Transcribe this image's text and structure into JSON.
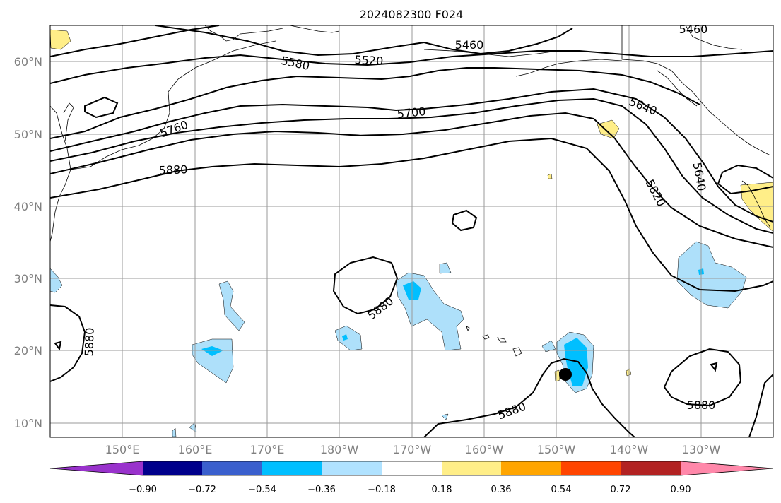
{
  "title": "2024082300 F024",
  "map": {
    "lat_labels": [
      "60°N",
      "50°N",
      "40°N",
      "30°N",
      "20°N",
      "10°N"
    ],
    "lon_labels": [
      "150°E",
      "160°E",
      "170°E",
      "180°W",
      "170°W",
      "160°W",
      "150°W",
      "140°W",
      "130°W"
    ],
    "contour_labels": [
      "5460",
      "5460",
      "5520",
      "5580",
      "5640",
      "5640",
      "5700",
      "5760",
      "5820",
      "5880",
      "5880",
      "5880",
      "5880",
      "5880"
    ],
    "colors": {
      "contour": "#000000",
      "grid": "#9a9a9a",
      "tick_label": "#808080",
      "shade_neg_light": "#aee0fa",
      "shade_neg_mid": "#00bfff",
      "shade_pos_light": "#ffee88",
      "marker": "#000000"
    }
  },
  "colorbar": {
    "colors": [
      "#9932cc",
      "#00008b",
      "#3a5fcd",
      "#00bfff",
      "#b0e2ff",
      "#ffffff",
      "#ffee88",
      "#ffa500",
      "#ff4500",
      "#b22222",
      "#ff88aa"
    ],
    "tick_labels": [
      "−0.90",
      "−0.72",
      "−0.54",
      "−0.36",
      "−0.18",
      "0.18",
      "0.36",
      "0.54",
      "0.72",
      "0.90"
    ]
  }
}
